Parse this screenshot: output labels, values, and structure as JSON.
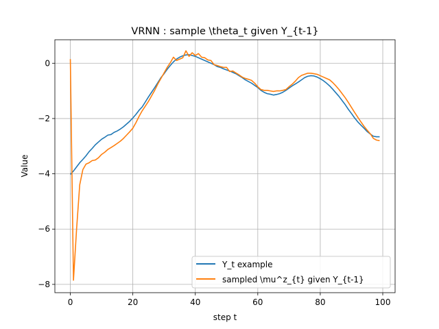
{
  "chart_data": {
    "type": "line",
    "title": "VRNN : sample \\theta_t given Y_{t-1}",
    "xlabel": "step t",
    "ylabel": "Value",
    "xlim": [
      -4.95,
      103.95
    ],
    "ylim": [
      -8.3,
      0.85
    ],
    "xticks": [
      0,
      20,
      40,
      60,
      80,
      100
    ],
    "yticks": [
      -8,
      -6,
      -4,
      -2,
      0
    ],
    "grid": true,
    "legend_position": "lower-right",
    "series": [
      {
        "name": "Y_t example",
        "color": "#1f77b4",
        "x": [
          0,
          1,
          2,
          3,
          4,
          5,
          6,
          7,
          8,
          9,
          10,
          11,
          12,
          13,
          14,
          15,
          16,
          17,
          18,
          19,
          20,
          21,
          22,
          23,
          24,
          25,
          26,
          27,
          28,
          29,
          30,
          31,
          32,
          33,
          34,
          35,
          36,
          37,
          38,
          39,
          40,
          41,
          42,
          43,
          44,
          45,
          46,
          47,
          48,
          49,
          50,
          51,
          52,
          53,
          54,
          55,
          56,
          57,
          58,
          59,
          60,
          61,
          62,
          63,
          64,
          65,
          66,
          67,
          68,
          69,
          70,
          71,
          72,
          73,
          74,
          75,
          76,
          77,
          78,
          79,
          80,
          81,
          82,
          83,
          84,
          85,
          86,
          87,
          88,
          89,
          90,
          91,
          92,
          93,
          94,
          95,
          96,
          97,
          98,
          99
        ],
        "values": [
          -4.02,
          -3.9,
          -3.75,
          -3.6,
          -3.48,
          -3.35,
          -3.2,
          -3.08,
          -2.95,
          -2.85,
          -2.75,
          -2.68,
          -2.6,
          -2.58,
          -2.5,
          -2.45,
          -2.38,
          -2.3,
          -2.2,
          -2.1,
          -1.98,
          -1.85,
          -1.7,
          -1.58,
          -1.4,
          -1.22,
          -1.05,
          -0.88,
          -0.7,
          -0.52,
          -0.38,
          -0.22,
          -0.08,
          0.05,
          0.15,
          0.22,
          0.27,
          0.3,
          0.31,
          0.28,
          0.25,
          0.2,
          0.15,
          0.1,
          0.05,
          0.0,
          -0.05,
          -0.12,
          -0.15,
          -0.2,
          -0.24,
          -0.28,
          -0.33,
          -0.38,
          -0.45,
          -0.52,
          -0.6,
          -0.66,
          -0.72,
          -0.8,
          -0.88,
          -0.98,
          -1.05,
          -1.1,
          -1.12,
          -1.15,
          -1.13,
          -1.1,
          -1.05,
          -0.98,
          -0.9,
          -0.82,
          -0.75,
          -0.68,
          -0.6,
          -0.52,
          -0.47,
          -0.45,
          -0.46,
          -0.5,
          -0.56,
          -0.63,
          -0.72,
          -0.82,
          -0.94,
          -1.07,
          -1.2,
          -1.35,
          -1.5,
          -1.67,
          -1.82,
          -1.98,
          -2.12,
          -2.24,
          -2.35,
          -2.47,
          -2.56,
          -2.64,
          -2.66,
          -2.66
        ]
      },
      {
        "name": "sampled \\mu^z_{t} given Y_{t-1}",
        "color": "#ff7f0e",
        "x": [
          0,
          1,
          2,
          3,
          4,
          5,
          6,
          7,
          8,
          9,
          10,
          11,
          12,
          13,
          14,
          15,
          16,
          17,
          18,
          19,
          20,
          21,
          22,
          23,
          24,
          25,
          26,
          27,
          28,
          29,
          30,
          31,
          32,
          33,
          34,
          35,
          36,
          37,
          38,
          39,
          40,
          41,
          42,
          43,
          44,
          45,
          46,
          47,
          48,
          49,
          50,
          51,
          52,
          53,
          54,
          55,
          56,
          57,
          58,
          59,
          60,
          61,
          62,
          63,
          64,
          65,
          66,
          67,
          68,
          69,
          70,
          71,
          72,
          73,
          74,
          75,
          76,
          77,
          78,
          79,
          80,
          81,
          82,
          83,
          84,
          85,
          86,
          87,
          88,
          89,
          90,
          91,
          92,
          93,
          94,
          95,
          96,
          97,
          98,
          99
        ],
        "values": [
          0.15,
          -7.85,
          -6.0,
          -4.4,
          -3.85,
          -3.65,
          -3.6,
          -3.52,
          -3.5,
          -3.42,
          -3.3,
          -3.22,
          -3.12,
          -3.05,
          -2.98,
          -2.9,
          -2.82,
          -2.72,
          -2.6,
          -2.48,
          -2.35,
          -2.15,
          -1.92,
          -1.72,
          -1.55,
          -1.38,
          -1.18,
          -0.98,
          -0.75,
          -0.55,
          -0.35,
          -0.15,
          0.02,
          0.22,
          0.1,
          0.15,
          0.2,
          0.45,
          0.25,
          0.38,
          0.28,
          0.35,
          0.22,
          0.2,
          0.12,
          0.1,
          -0.05,
          -0.08,
          -0.12,
          -0.15,
          -0.15,
          -0.3,
          -0.28,
          -0.35,
          -0.42,
          -0.5,
          -0.55,
          -0.58,
          -0.62,
          -0.72,
          -0.85,
          -0.95,
          -0.98,
          -0.98,
          -1.0,
          -1.02,
          -1.0,
          -1.0,
          -0.98,
          -0.95,
          -0.85,
          -0.76,
          -0.65,
          -0.52,
          -0.44,
          -0.4,
          -0.36,
          -0.36,
          -0.38,
          -0.4,
          -0.45,
          -0.5,
          -0.55,
          -0.6,
          -0.7,
          -0.82,
          -0.95,
          -1.1,
          -1.25,
          -1.42,
          -1.6,
          -1.78,
          -1.95,
          -2.12,
          -2.28,
          -2.42,
          -2.55,
          -2.72,
          -2.78,
          -2.8
        ]
      }
    ]
  }
}
